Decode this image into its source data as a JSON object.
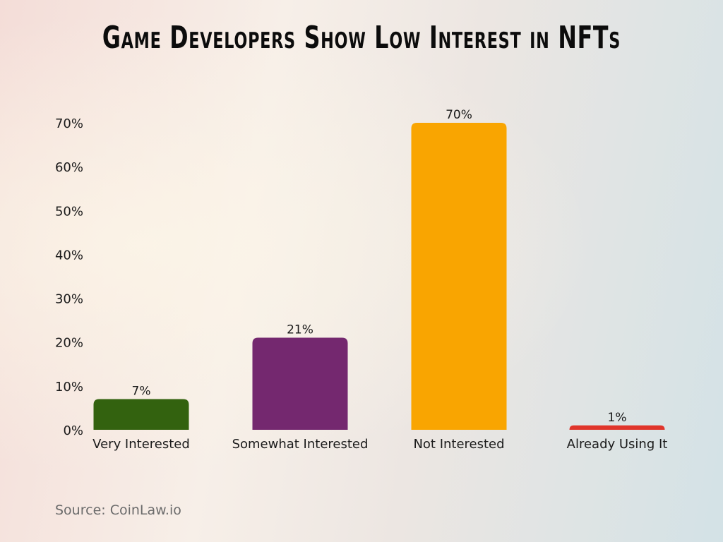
{
  "chart_data": {
    "type": "bar",
    "title": "Game Developers Show Low Interest in NFTs",
    "xlabel": "",
    "ylabel": "",
    "categories": [
      "Very Interested",
      "Somewhat Interested",
      "Not Interested",
      "Already Using It"
    ],
    "values": [
      7,
      21,
      70,
      1
    ],
    "data_labels": [
      "7%",
      "21%",
      "70%",
      "1%"
    ],
    "colors": [
      "#33620f",
      "#74286f",
      "#f9a501",
      "#e0352b"
    ],
    "ylim": [
      0,
      70
    ],
    "yticks": [
      0,
      10,
      20,
      30,
      40,
      50,
      60,
      70
    ],
    "ytick_labels": [
      "0%",
      "10%",
      "20%",
      "30%",
      "40%",
      "50%",
      "60%",
      "70%"
    ],
    "grid": false,
    "legend": "none"
  },
  "source": "Source: CoinLaw.io"
}
